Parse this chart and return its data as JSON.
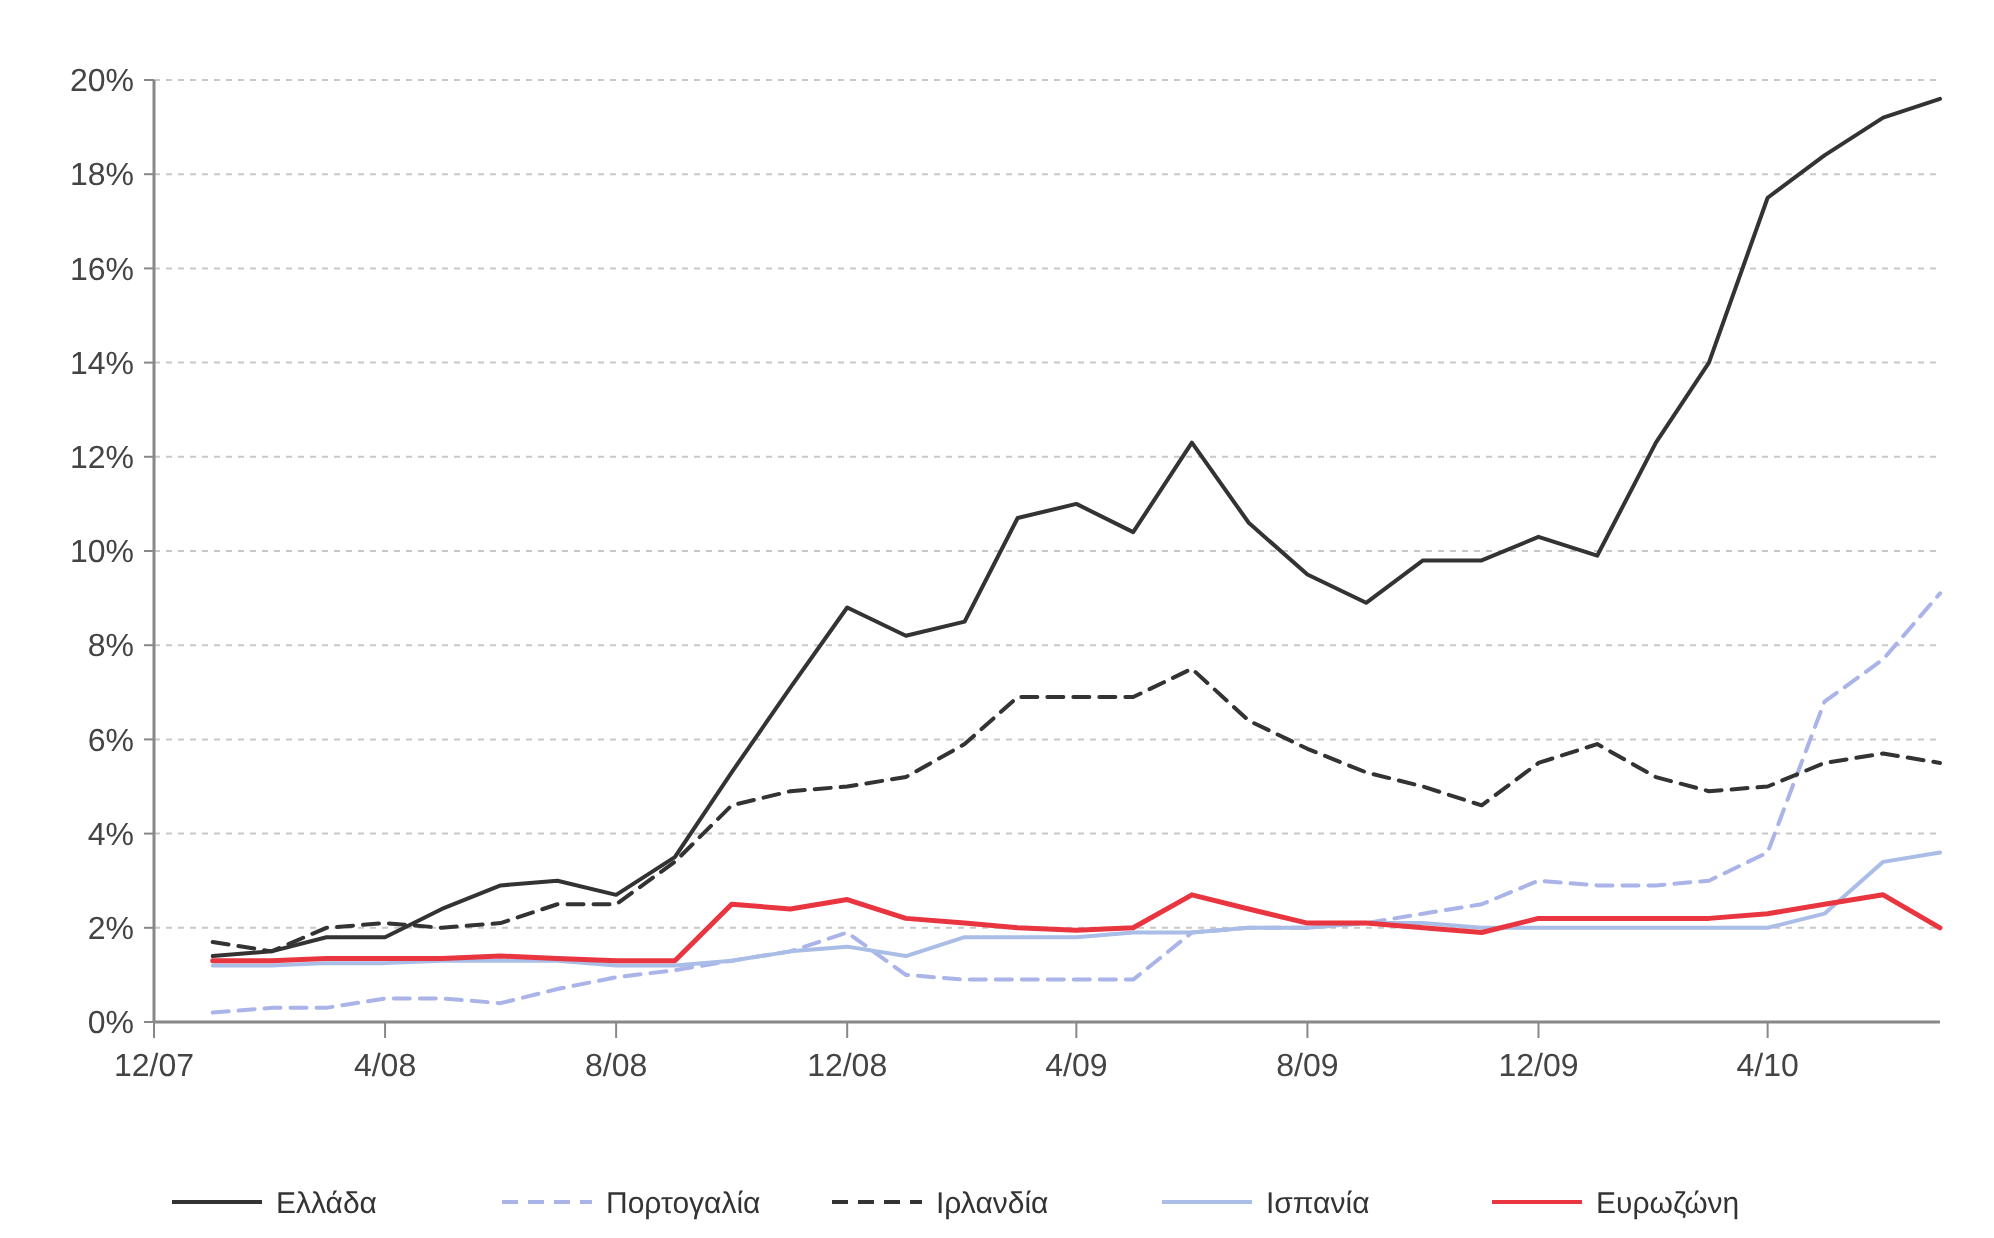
{
  "chart_data": {
    "type": "line",
    "x": [
      "2008-01",
      "2008-02",
      "2008-03",
      "2008-04",
      "2008-05",
      "2008-06",
      "2008-07",
      "2008-08",
      "2008-09",
      "2008-10",
      "2008-11",
      "2008-12",
      "2009-01",
      "2009-02",
      "2009-03",
      "2009-04",
      "2009-05",
      "2009-06",
      "2009-07",
      "2009-08",
      "2009-09",
      "2009-10",
      "2009-11",
      "2009-12",
      "2010-01",
      "2010-02",
      "2010-03",
      "2010-04",
      "2010-05",
      "2010-06",
      "2010-07"
    ],
    "xlim": [
      "2007-12",
      "2010-07"
    ],
    "xticks": [
      {
        "value": "2007-12",
        "label": "12/07"
      },
      {
        "value": "2008-04",
        "label": "4/08"
      },
      {
        "value": "2008-08",
        "label": "8/08"
      },
      {
        "value": "2008-12",
        "label": "12/08"
      },
      {
        "value": "2009-04",
        "label": "4/09"
      },
      {
        "value": "2009-08",
        "label": "8/09"
      },
      {
        "value": "2009-12",
        "label": "12/09"
      },
      {
        "value": "2010-04",
        "label": "4/10"
      }
    ],
    "ylim": [
      0,
      20
    ],
    "yticks": [
      {
        "value": 0,
        "label": "0%"
      },
      {
        "value": 2,
        "label": "2%"
      },
      {
        "value": 4,
        "label": "4%"
      },
      {
        "value": 6,
        "label": "6%"
      },
      {
        "value": 8,
        "label": "8%"
      },
      {
        "value": 10,
        "label": "10%"
      },
      {
        "value": 12,
        "label": "12%"
      },
      {
        "value": 14,
        "label": "14%"
      },
      {
        "value": 16,
        "label": "16%"
      },
      {
        "value": 18,
        "label": "18%"
      },
      {
        "value": 20,
        "label": "20%"
      }
    ],
    "grid": "y",
    "legend": "bottom",
    "series": [
      {
        "name": "Ελλάδα",
        "color": "#333333",
        "line_style": "solid",
        "values": [
          1.4,
          1.5,
          1.8,
          1.8,
          2.4,
          2.9,
          3.0,
          2.7,
          3.5,
          5.3,
          7.1,
          8.8,
          8.2,
          8.5,
          10.7,
          11.0,
          10.4,
          12.3,
          10.6,
          9.5,
          8.9,
          9.8,
          9.8,
          10.3,
          9.9,
          12.3,
          14.0,
          17.5,
          18.4,
          19.2,
          19.6
        ]
      },
      {
        "name": "Πορτογαλία",
        "color": "#aab4e8",
        "line_style": "dashed",
        "values": [
          0.2,
          0.3,
          0.3,
          0.5,
          0.5,
          0.4,
          0.7,
          0.95,
          1.1,
          1.3,
          1.5,
          1.9,
          1.0,
          0.9,
          0.9,
          0.9,
          0.9,
          1.9,
          2.0,
          2.0,
          2.1,
          2.3,
          2.5,
          3.0,
          2.9,
          2.9,
          3.0,
          3.6,
          6.8,
          7.7,
          9.1
        ]
      },
      {
        "name": "Ιρλανδία",
        "color": "#333333",
        "line_style": "dashed",
        "values": [
          1.7,
          1.5,
          2.0,
          2.1,
          2.0,
          2.1,
          2.5,
          2.5,
          3.4,
          4.6,
          4.9,
          5.0,
          5.2,
          5.9,
          6.9,
          6.9,
          6.9,
          7.5,
          6.4,
          5.8,
          5.3,
          5.0,
          4.6,
          5.5,
          5.9,
          5.2,
          4.9,
          5.0,
          5.5,
          5.7,
          5.5
        ]
      },
      {
        "name": "Ισπανία",
        "color": "#a9bde6",
        "line_style": "solid",
        "values": [
          1.2,
          1.2,
          1.25,
          1.25,
          1.3,
          1.3,
          1.3,
          1.2,
          1.2,
          1.3,
          1.5,
          1.6,
          1.4,
          1.8,
          1.8,
          1.8,
          1.9,
          1.9,
          2.0,
          2.0,
          2.1,
          2.1,
          2.0,
          2.0,
          2.0,
          2.0,
          2.0,
          2.0,
          2.3,
          3.4,
          3.6
        ]
      },
      {
        "name": "Ευρωζώνη",
        "color": "#e8353f",
        "line_style": "solid",
        "values": [
          1.3,
          1.3,
          1.35,
          1.35,
          1.35,
          1.4,
          1.35,
          1.3,
          1.3,
          2.5,
          2.4,
          2.6,
          2.2,
          2.1,
          2.0,
          1.95,
          2.0,
          2.7,
          2.4,
          2.1,
          2.1,
          2.0,
          1.9,
          2.2,
          2.2,
          2.2,
          2.2,
          2.3,
          2.5,
          2.7,
          2.0
        ]
      }
    ]
  }
}
